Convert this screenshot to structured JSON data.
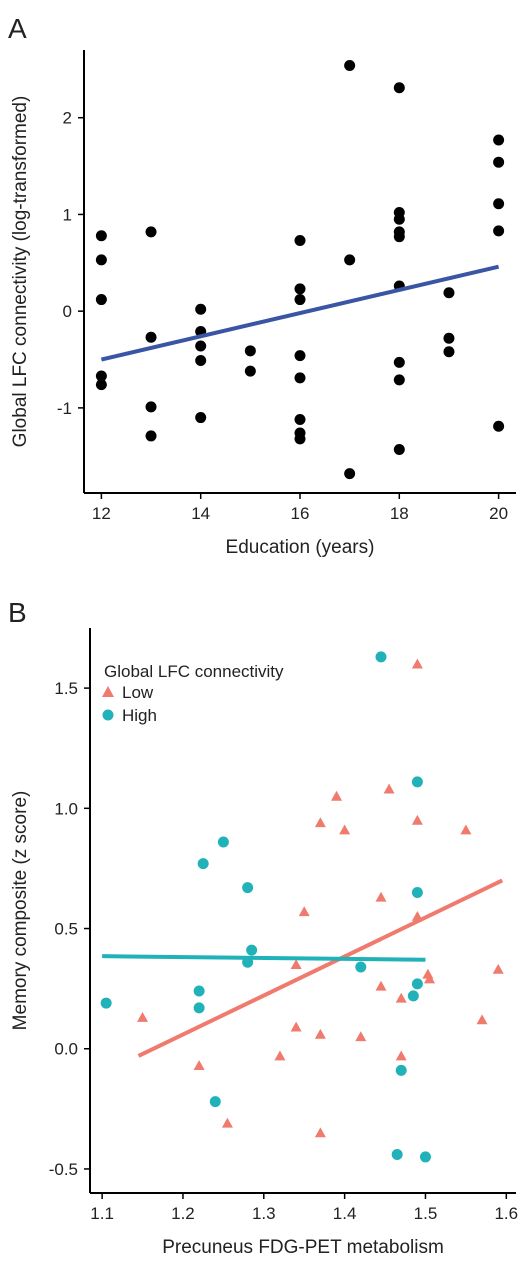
{
  "chart_data": [
    {
      "panel": "A",
      "type": "scatter",
      "xlabel": "Education (years)",
      "ylabel": "Global LFC connectivity (log-transformed)",
      "xlim": [
        11.65,
        20.35
      ],
      "ylim": [
        -1.88,
        2.7
      ],
      "xticks": [
        12,
        14,
        16,
        18,
        20
      ],
      "yticks": [
        -1,
        0,
        1,
        2
      ],
      "grid": false,
      "series": [
        {
          "color": "#000000",
          "marker": "circle",
          "points": [
            [
              12,
              0.78
            ],
            [
              12,
              0.53
            ],
            [
              12,
              0.12
            ],
            [
              12,
              -0.67
            ],
            [
              12,
              -0.76
            ],
            [
              13,
              0.82
            ],
            [
              13,
              -0.27
            ],
            [
              13,
              -0.99
            ],
            [
              13,
              -1.29
            ],
            [
              14,
              0.02
            ],
            [
              14,
              -0.21
            ],
            [
              14,
              -0.36
            ],
            [
              14,
              -0.51
            ],
            [
              14,
              -1.1
            ],
            [
              15,
              -0.41
            ],
            [
              15,
              -0.62
            ],
            [
              16,
              0.73
            ],
            [
              16,
              0.23
            ],
            [
              16,
              0.12
            ],
            [
              16,
              -0.46
            ],
            [
              16,
              -0.69
            ],
            [
              16,
              -1.12
            ],
            [
              16,
              -1.26
            ],
            [
              16,
              -1.32
            ],
            [
              17,
              2.54
            ],
            [
              17,
              0.53
            ],
            [
              17,
              -1.68
            ],
            [
              18,
              2.31
            ],
            [
              18,
              1.02
            ],
            [
              18,
              0.95
            ],
            [
              18,
              0.82
            ],
            [
              18,
              0.77
            ],
            [
              18,
              0.26
            ],
            [
              18,
              -0.53
            ],
            [
              18,
              -0.71
            ],
            [
              18,
              -1.43
            ],
            [
              19,
              0.19
            ],
            [
              19,
              -0.28
            ],
            [
              19,
              -0.42
            ],
            [
              20,
              1.77
            ],
            [
              20,
              1.54
            ],
            [
              20,
              1.11
            ],
            [
              20,
              0.83
            ],
            [
              20,
              -1.19
            ]
          ]
        }
      ],
      "fit_line": {
        "color": "#3a55a4",
        "x": [
          12,
          20
        ],
        "y": [
          -0.5,
          0.46
        ]
      }
    },
    {
      "panel": "B",
      "type": "scatter",
      "xlabel": "Precuneus FDG-PET metabolism",
      "ylabel": "Memory composite (z score)",
      "xlim": [
        1.085,
        1.612
      ],
      "ylim": [
        -0.6,
        1.75
      ],
      "xticks": [
        1.1,
        1.2,
        1.3,
        1.4,
        1.5,
        1.6
      ],
      "yticks": [
        -0.5,
        0.0,
        0.5,
        1.0,
        1.5
      ],
      "grid": false,
      "legend": {
        "title": "Global LFC connectivity",
        "placement": "top-left"
      },
      "series": [
        {
          "name": "Low",
          "color": "#ef7a6d",
          "marker": "triangle",
          "points": [
            [
              1.49,
              1.6
            ],
            [
              1.39,
              1.05
            ],
            [
              1.455,
              1.08
            ],
            [
              1.37,
              0.94
            ],
            [
              1.4,
              0.91
            ],
            [
              1.49,
              0.95
            ],
            [
              1.55,
              0.91
            ],
            [
              1.445,
              0.63
            ],
            [
              1.35,
              0.57
            ],
            [
              1.49,
              0.55
            ],
            [
              1.34,
              0.35
            ],
            [
              1.503,
              0.31
            ],
            [
              1.505,
              0.29
            ],
            [
              1.59,
              0.33
            ],
            [
              1.445,
              0.26
            ],
            [
              1.47,
              0.21
            ],
            [
              1.15,
              0.13
            ],
            [
              1.57,
              0.12
            ],
            [
              1.34,
              0.09
            ],
            [
              1.37,
              0.06
            ],
            [
              1.42,
              0.05
            ],
            [
              1.32,
              -0.03
            ],
            [
              1.47,
              -0.03
            ],
            [
              1.22,
              -0.07
            ],
            [
              1.255,
              -0.31
            ],
            [
              1.37,
              -0.35
            ]
          ]
        },
        {
          "name": "High",
          "color": "#21b2b9",
          "marker": "circle",
          "points": [
            [
              1.445,
              1.63
            ],
            [
              1.49,
              1.11
            ],
            [
              1.25,
              0.86
            ],
            [
              1.225,
              0.77
            ],
            [
              1.28,
              0.67
            ],
            [
              1.49,
              0.65
            ],
            [
              1.285,
              0.41
            ],
            [
              1.28,
              0.36
            ],
            [
              1.42,
              0.34
            ],
            [
              1.49,
              0.27
            ],
            [
              1.22,
              0.24
            ],
            [
              1.485,
              0.22
            ],
            [
              1.105,
              0.19
            ],
            [
              1.22,
              0.17
            ],
            [
              1.47,
              -0.09
            ],
            [
              1.24,
              -0.22
            ],
            [
              1.465,
              -0.44
            ],
            [
              1.5,
              -0.45
            ]
          ]
        }
      ],
      "fit_lines": [
        {
          "series": "Low",
          "color": "#ef7a6d",
          "x": [
            1.145,
            1.595
          ],
          "y": [
            -0.03,
            0.7
          ]
        },
        {
          "series": "High",
          "color": "#21b2b9",
          "x": [
            1.1,
            1.5
          ],
          "y": [
            0.385,
            0.37
          ]
        }
      ]
    }
  ],
  "labels": {
    "panel_a": "A",
    "panel_b": "B"
  }
}
